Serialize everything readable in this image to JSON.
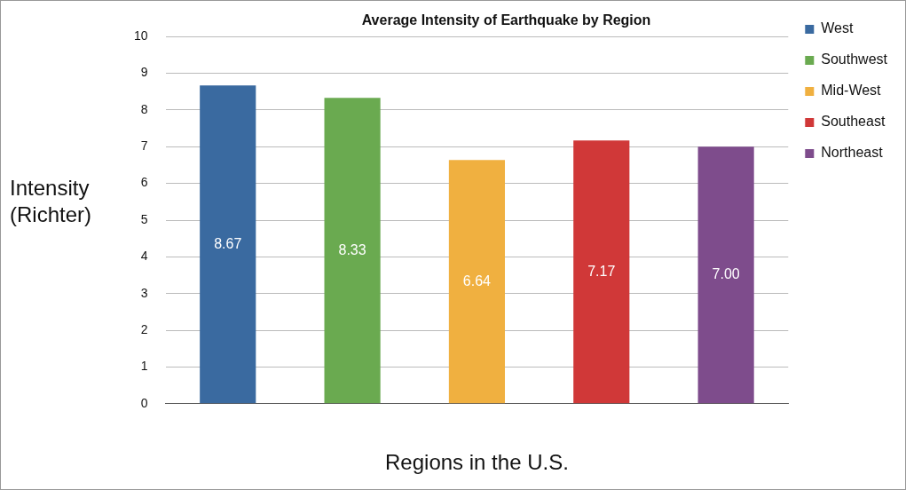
{
  "chart_data": {
    "type": "bar",
    "title": "Average Intensity of Earthquake by Region",
    "xlabel": "Regions in the U.S.",
    "ylabel": "Intensity\n(Richter)",
    "categories": [
      null,
      null,
      null,
      null,
      null
    ],
    "series": [
      {
        "name": "West",
        "color": "#3a6aa0",
        "values": [
          8.67,
          null,
          null,
          null,
          null
        ],
        "value_labels": [
          "8.67",
          null,
          null,
          null,
          null
        ]
      },
      {
        "name": "Southwest",
        "color": "#6aaa50",
        "values": [
          null,
          8.33,
          null,
          null,
          null
        ],
        "value_labels": [
          null,
          "8.33",
          null,
          null,
          null
        ]
      },
      {
        "name": "Mid-West",
        "color": "#f0b040",
        "values": [
          null,
          null,
          6.64,
          null,
          null
        ],
        "value_labels": [
          null,
          null,
          "6.64",
          null,
          null
        ]
      },
      {
        "name": "Southeast",
        "color": "#d03838",
        "values": [
          null,
          null,
          null,
          7.17,
          null
        ],
        "value_labels": [
          null,
          null,
          null,
          "7.17",
          null
        ]
      },
      {
        "name": "Northeast",
        "color": "#7e4c8c",
        "values": [
          null,
          null,
          null,
          null,
          7.0
        ],
        "value_labels": [
          null,
          null,
          null,
          null,
          "7.00"
        ]
      }
    ],
    "ylim": [
      0,
      10
    ],
    "yticks": [
      0,
      1,
      2,
      3,
      4,
      5,
      6,
      7,
      8,
      9,
      10
    ],
    "grid": "y",
    "legend": "right"
  }
}
